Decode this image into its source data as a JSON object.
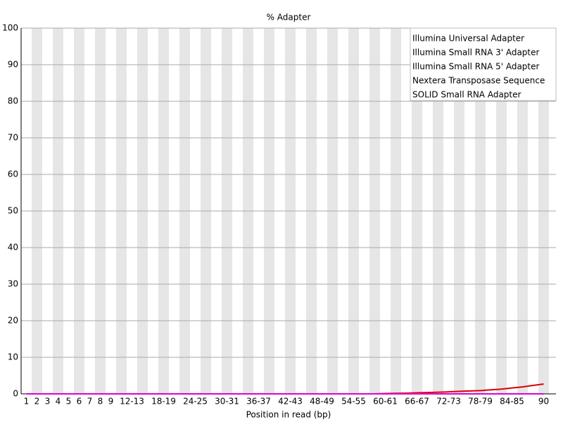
{
  "chart_data": {
    "type": "line",
    "title": "% Adapter",
    "x_label": "Position in read (bp)",
    "categories": [
      "1",
      "2",
      "3",
      "4",
      "5",
      "6",
      "7",
      "8",
      "9",
      null,
      "12-13",
      null,
      null,
      "18-19",
      null,
      null,
      "24-25",
      null,
      null,
      "30-31",
      null,
      null,
      "36-37",
      null,
      null,
      "42-43",
      null,
      null,
      "48-49",
      null,
      null,
      "54-55",
      null,
      null,
      "60-61",
      null,
      null,
      "66-67",
      null,
      null,
      "72-73",
      null,
      null,
      "78-79",
      null,
      null,
      "84-85",
      null,
      null,
      "90"
    ],
    "series": [
      {
        "name": "Illumina Universal Adapter",
        "color": "#dd0000",
        "values": [
          0,
          0,
          0,
          0,
          0,
          0,
          0,
          0,
          0,
          0,
          0,
          0,
          0,
          0,
          0,
          0,
          0,
          0,
          0,
          0,
          0,
          0,
          0,
          0,
          0,
          0,
          0,
          0,
          0,
          0,
          0,
          0,
          0,
          0,
          0.1,
          0.15,
          0.2,
          0.3,
          0.35,
          0.45,
          0.55,
          0.7,
          0.8,
          0.9,
          1.1,
          1.3,
          1.6,
          1.9,
          2.3,
          2.7
        ]
      },
      {
        "name": "Illumina Small RNA 3' Adapter",
        "color": "#0000aa",
        "values": [
          0,
          0,
          0,
          0,
          0,
          0,
          0,
          0,
          0,
          0,
          0,
          0,
          0,
          0,
          0,
          0,
          0,
          0,
          0,
          0,
          0,
          0,
          0,
          0,
          0,
          0,
          0,
          0,
          0,
          0,
          0,
          0,
          0,
          0,
          0,
          0,
          0,
          0,
          0,
          0,
          0,
          0,
          0,
          0,
          0,
          0,
          0,
          0,
          0,
          0
        ]
      },
      {
        "name": "Illumina Small RNA 5' Adapter",
        "color": "#22bb22",
        "values": [
          0,
          0,
          0,
          0,
          0,
          0,
          0,
          0,
          0,
          0,
          0,
          0,
          0,
          0,
          0,
          0,
          0,
          0,
          0,
          0,
          0,
          0,
          0,
          0,
          0,
          0,
          0,
          0,
          0,
          0,
          0,
          0,
          0,
          0,
          0,
          0,
          0,
          0,
          0,
          0,
          0,
          0,
          0,
          0,
          0,
          0,
          0,
          0,
          0,
          0
        ]
      },
      {
        "name": "Nextera Transposase Sequence",
        "color": "#444444",
        "values": [
          0,
          0,
          0,
          0,
          0,
          0,
          0,
          0,
          0,
          0,
          0,
          0,
          0,
          0,
          0,
          0,
          0,
          0,
          0,
          0,
          0,
          0,
          0,
          0,
          0,
          0,
          0,
          0,
          0,
          0,
          0,
          0,
          0,
          0,
          0,
          0,
          0,
          0,
          0,
          0,
          0,
          0,
          0,
          0,
          0,
          0,
          0,
          0,
          0,
          0
        ]
      },
      {
        "name": "SOLID Small RNA Adapter",
        "color": "#dd00dd",
        "values": [
          0,
          0,
          0,
          0,
          0,
          0,
          0,
          0,
          0,
          0,
          0,
          0,
          0,
          0,
          0,
          0,
          0,
          0,
          0,
          0,
          0,
          0,
          0,
          0,
          0,
          0,
          0,
          0,
          0,
          0,
          0,
          0,
          0,
          0,
          0,
          0,
          0,
          0,
          0,
          0,
          0,
          0,
          0,
          0,
          0,
          0,
          0,
          0,
          0,
          0
        ]
      }
    ],
    "ylim": [
      0,
      100
    ],
    "yticks": [
      0,
      10,
      20,
      30,
      40,
      50,
      60,
      70,
      80,
      90,
      100
    ],
    "grid": true,
    "legend": "upper right"
  }
}
